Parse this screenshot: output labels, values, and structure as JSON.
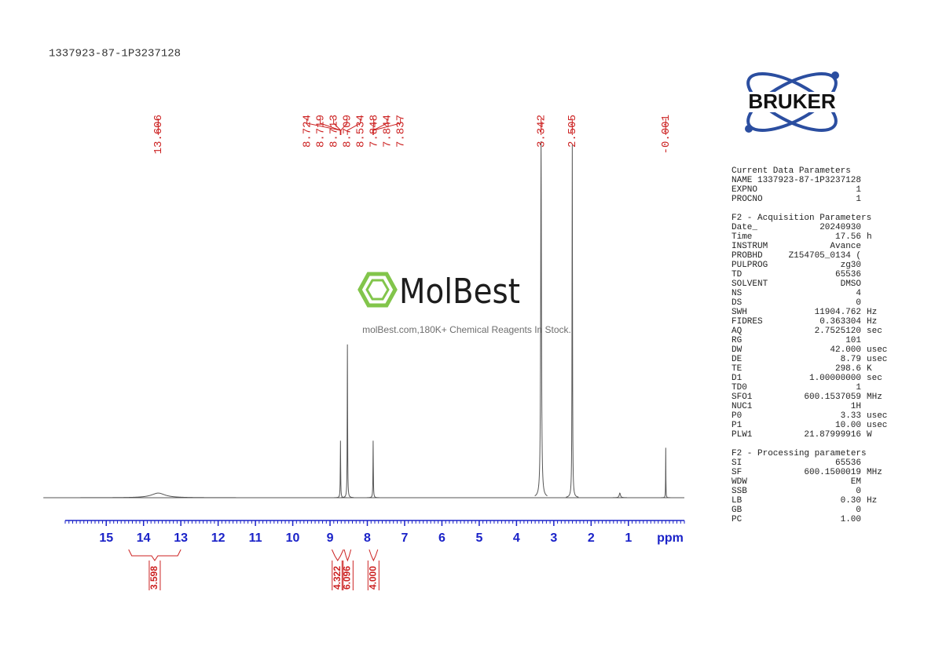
{
  "chart_data": {
    "type": "spectrum",
    "title": "1337923-87-1P3237128",
    "xlabel": "ppm",
    "xlim": [
      16.1,
      -0.5
    ],
    "xticks": [
      15,
      14,
      13,
      12,
      11,
      10,
      9,
      8,
      7,
      6,
      5,
      4,
      3,
      2,
      1
    ],
    "trace_color": "#555555",
    "label_color": "#cc2222",
    "axis_color": "#1a22c8",
    "peaks": [
      {
        "shift": 13.606,
        "height": 1.3,
        "width": 0.22
      },
      {
        "shift": 8.72,
        "height": 16,
        "width": 0.006
      },
      {
        "shift": 8.534,
        "height": 43,
        "width": 0.006
      },
      {
        "shift": 7.844,
        "height": 16,
        "width": 0.006
      },
      {
        "shift": 3.342,
        "height": 100,
        "width": 0.012
      },
      {
        "shift": 2.505,
        "height": 99,
        "width": 0.007
      },
      {
        "shift": 1.23,
        "height": 1.3,
        "width": 0.02
      },
      {
        "shift": -0.001,
        "height": 14,
        "width": 0.004
      }
    ],
    "peak_labels": [
      13.606,
      8.724,
      8.719,
      8.713,
      8.709,
      8.534,
      7.848,
      7.844,
      7.837,
      3.342,
      2.505,
      -0.001
    ],
    "integrals": [
      {
        "value": 3.598,
        "range": [
          14.4,
          13.0
        ]
      },
      {
        "value": 4.322,
        "range": [
          8.95,
          8.64
        ]
      },
      {
        "value": 6.096,
        "range": [
          8.62,
          8.44
        ]
      },
      {
        "value": 4,
        "label": "4.000",
        "range": [
          7.95,
          7.72
        ]
      }
    ]
  },
  "logo": "BRUKER",
  "watermark": {
    "brand": "MolBest",
    "text": "molBest.com,180K+ Chemical Reagents In Stock."
  },
  "parameters": [
    {
      "title": "Current Data Parameters",
      "rows": [
        [
          "NAME",
          "1337923-87-1P3237128"
        ],
        [
          "EXPNO",
          "1"
        ],
        [
          "PROCNO",
          "1"
        ]
      ]
    },
    {
      "title": "F2 - Acquisition Parameters",
      "rows": [
        [
          "Date_",
          "20240930"
        ],
        [
          "Time",
          "17.56",
          "h"
        ],
        [
          "INSTRUM",
          "Avance"
        ],
        [
          "PROBHD",
          "Z154705_0134 ("
        ],
        [
          "PULPROG",
          "zg30"
        ],
        [
          "TD",
          "65536"
        ],
        [
          "SOLVENT",
          "DMSO"
        ],
        [
          "NS",
          "4"
        ],
        [
          "DS",
          "0"
        ],
        [
          "SWH",
          "11904.762",
          "Hz"
        ],
        [
          "FIDRES",
          "0.363304",
          "Hz"
        ],
        [
          "AQ",
          "2.7525120",
          "sec"
        ],
        [
          "RG",
          "101"
        ],
        [
          "DW",
          "42.000",
          "usec"
        ],
        [
          "DE",
          "8.79",
          "usec"
        ],
        [
          "TE",
          "298.6",
          "K"
        ],
        [
          "D1",
          "1.00000000",
          "sec"
        ],
        [
          "TD0",
          "1"
        ],
        [
          "SFO1",
          "600.1537059",
          "MHz"
        ],
        [
          "NUC1",
          "1H"
        ],
        [
          "P0",
          "3.33",
          "usec"
        ],
        [
          "P1",
          "10.00",
          "usec"
        ],
        [
          "PLW1",
          "21.87999916",
          "W"
        ]
      ]
    },
    {
      "title": "F2 - Processing parameters",
      "rows": [
        [
          "SI",
          "65536"
        ],
        [
          "SF",
          "600.1500019",
          "MHz"
        ],
        [
          "WDW",
          "EM"
        ],
        [
          "SSB",
          "0"
        ],
        [
          "LB",
          "0.30",
          "Hz"
        ],
        [
          "GB",
          "0"
        ],
        [
          "PC",
          "1.00"
        ]
      ]
    }
  ]
}
